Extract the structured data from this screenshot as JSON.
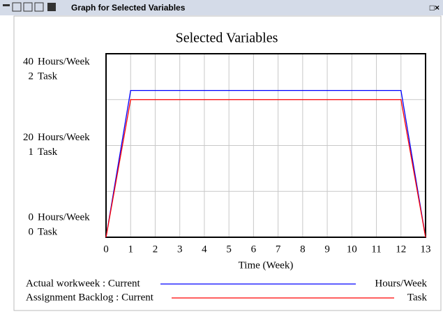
{
  "window": {
    "title": "Graph for Selected Variables",
    "controls": "□×"
  },
  "chart_data": {
    "type": "line",
    "title": "Selected Variables",
    "xlabel": "Time (Week)",
    "ylabel": "Hours/Week",
    "y2label": "Task",
    "x": [
      0,
      1,
      2,
      3,
      4,
      5,
      6,
      7,
      8,
      9,
      10,
      11,
      12,
      13
    ],
    "xlim": [
      0,
      13
    ],
    "xticks": [
      0,
      1,
      2,
      3,
      4,
      5,
      6,
      7,
      8,
      9,
      10,
      11,
      12,
      13
    ],
    "ylim": [
      0,
      40
    ],
    "yticks": [
      0,
      20,
      40
    ],
    "yminor": [
      10,
      30
    ],
    "y2lim": [
      0,
      2
    ],
    "y2ticks": [
      0,
      1,
      2
    ],
    "grid": true,
    "series": [
      {
        "name": "Actual workweek : Current",
        "color": "#0000ff",
        "values": [
          0,
          32,
          32,
          32,
          32,
          32,
          32,
          32,
          32,
          32,
          32,
          32,
          32,
          0
        ]
      },
      {
        "name": "Assignment Backlog : Current",
        "color": "#ff0000",
        "axis": "y2",
        "values": [
          0,
          1.5,
          1.5,
          1.5,
          1.5,
          1.5,
          1.5,
          1.5,
          1.5,
          1.5,
          1.5,
          1.5,
          1.5,
          0
        ]
      }
    ]
  }
}
